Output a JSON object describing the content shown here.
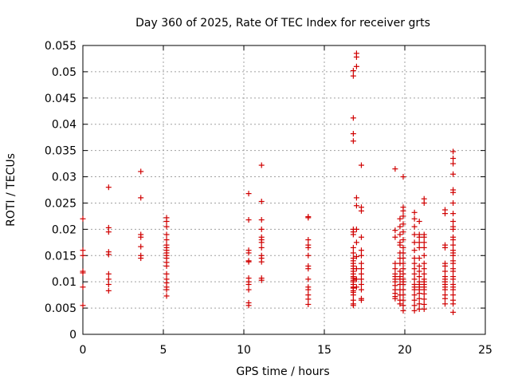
{
  "chart_data": {
    "type": "scatter",
    "title": "Day 360 of 2025, Rate Of TEC Index for receiver grts",
    "xlabel": "GPS time / hours",
    "ylabel": "ROTI / TECUs",
    "xlim": [
      0,
      25
    ],
    "ylim": [
      0,
      0.055
    ],
    "xticks": [
      "0",
      "5",
      "10",
      "15",
      "20",
      "25"
    ],
    "yticks": [
      "0",
      "0.005",
      "0.01",
      "0.015",
      "0.02",
      "0.025",
      "0.03",
      "0.035",
      "0.04",
      "0.045",
      "0.05",
      "0.055"
    ],
    "grid": true,
    "marker": "plus",
    "color": "#d00000",
    "series": [
      {
        "name": "ROTI",
        "x": [
          0.0,
          0.0,
          0.0,
          0.0,
          0.0,
          0.0,
          0.0,
          1.6,
          1.6,
          1.6,
          1.6,
          1.6,
          1.6,
          1.6,
          1.6,
          1.6,
          3.6,
          3.6,
          3.6,
          3.6,
          3.6,
          3.6,
          3.6,
          5.2,
          5.2,
          5.2,
          5.2,
          5.2,
          5.2,
          5.2,
          5.2,
          5.2,
          5.2,
          5.2,
          5.2,
          5.2,
          5.2,
          5.2,
          5.2,
          5.2,
          5.2,
          5.2,
          10.3,
          10.3,
          10.3,
          10.3,
          10.3,
          10.3,
          10.3,
          10.3,
          10.3,
          10.3,
          10.3,
          10.3,
          11.1,
          11.1,
          11.1,
          11.1,
          11.1,
          11.1,
          11.1,
          11.1,
          11.1,
          11.1,
          11.1,
          11.1,
          11.1,
          14.0,
          14.0,
          14.0,
          14.0,
          14.0,
          14.0,
          14.0,
          14.0,
          14.0,
          14.0,
          14.0,
          14.0,
          14.0,
          14.0,
          16.8,
          16.8,
          16.8,
          16.8,
          16.8,
          16.8,
          16.8,
          16.8,
          16.8,
          16.8,
          16.8,
          16.8,
          16.8,
          16.8,
          16.8,
          16.8,
          16.8,
          16.8,
          16.8,
          16.8,
          16.8,
          16.8,
          16.8,
          16.8,
          16.8,
          16.8,
          16.8,
          16.8,
          16.8,
          16.8,
          17.0,
          17.0,
          17.0,
          17.0,
          17.0,
          17.0,
          17.0,
          17.0,
          17.0,
          17.0,
          17.0,
          17.3,
          17.3,
          17.3,
          17.3,
          17.3,
          17.3,
          17.3,
          17.3,
          17.3,
          17.3,
          17.3,
          17.3,
          17.3,
          17.3,
          19.4,
          19.4,
          19.4,
          19.4,
          19.4,
          19.4,
          19.4,
          19.4,
          19.4,
          19.4,
          19.4,
          19.4,
          19.4,
          19.4,
          19.7,
          19.7,
          19.7,
          19.7,
          19.7,
          19.7,
          19.7,
          19.7,
          19.7,
          19.7,
          19.7,
          19.7,
          19.7,
          19.7,
          19.7,
          19.7,
          19.9,
          19.9,
          19.9,
          19.9,
          19.9,
          19.9,
          19.9,
          19.9,
          19.9,
          19.9,
          19.9,
          19.9,
          19.9,
          19.9,
          19.9,
          19.9,
          19.9,
          19.9,
          19.9,
          19.9,
          19.9,
          20.6,
          20.6,
          20.6,
          20.6,
          20.6,
          20.6,
          20.6,
          20.6,
          20.6,
          20.6,
          20.6,
          20.6,
          20.6,
          20.6,
          20.6,
          20.6,
          20.6,
          20.6,
          20.9,
          20.9,
          20.9,
          20.9,
          20.9,
          20.9,
          20.9,
          20.9,
          20.9,
          20.9,
          20.9,
          20.9,
          20.9,
          20.9,
          20.9,
          20.9,
          20.9,
          21.2,
          21.2,
          21.2,
          21.2,
          21.2,
          21.2,
          21.2,
          21.2,
          21.2,
          21.2,
          21.2,
          21.2,
          21.2,
          21.2,
          21.2,
          21.2,
          21.2,
          21.2,
          21.2,
          22.5,
          22.5,
          22.5,
          22.5,
          22.5,
          22.5,
          22.5,
          22.5,
          22.5,
          22.5,
          22.5,
          22.5,
          22.5,
          22.5,
          22.5,
          22.5,
          23.0,
          23.0,
          23.0,
          23.0,
          23.0,
          23.0,
          23.0,
          23.0,
          23.0,
          23.0,
          23.0,
          23.0,
          23.0,
          23.0,
          23.0,
          23.0,
          23.0,
          23.0,
          23.0,
          23.0,
          23.0,
          23.0,
          23.0,
          23.0,
          23.0,
          23.0,
          23.0,
          23.0,
          23.0,
          23.0
        ],
        "y": [
          0.0055,
          0.009,
          0.0117,
          0.012,
          0.015,
          0.016,
          0.022,
          0.0083,
          0.0095,
          0.0105,
          0.0115,
          0.0152,
          0.0157,
          0.0195,
          0.0203,
          0.028,
          0.0145,
          0.015,
          0.0167,
          0.0185,
          0.019,
          0.026,
          0.031,
          0.0073,
          0.0085,
          0.009,
          0.0098,
          0.0105,
          0.0115,
          0.013,
          0.0137,
          0.0145,
          0.015,
          0.0155,
          0.016,
          0.0165,
          0.017,
          0.018,
          0.019,
          0.0205,
          0.0215,
          0.0222,
          0.0055,
          0.006,
          0.0085,
          0.0095,
          0.01,
          0.0107,
          0.0138,
          0.014,
          0.0155,
          0.016,
          0.0218,
          0.0268,
          0.0103,
          0.0107,
          0.0138,
          0.0145,
          0.015,
          0.0165,
          0.0175,
          0.018,
          0.0185,
          0.02,
          0.0218,
          0.0253,
          0.0322,
          0.0057,
          0.0067,
          0.0075,
          0.0085,
          0.009,
          0.0105,
          0.0125,
          0.013,
          0.015,
          0.0165,
          0.017,
          0.018,
          0.0222,
          0.0224,
          0.0055,
          0.0058,
          0.0065,
          0.0075,
          0.008,
          0.0083,
          0.0088,
          0.009,
          0.0095,
          0.01,
          0.0103,
          0.0107,
          0.011,
          0.0115,
          0.012,
          0.0125,
          0.013,
          0.0135,
          0.014,
          0.0145,
          0.0155,
          0.0165,
          0.019,
          0.0195,
          0.02,
          0.0368,
          0.0382,
          0.0412,
          0.0492,
          0.0502,
          0.0535,
          0.0528,
          0.051,
          0.009,
          0.0105,
          0.0125,
          0.0148,
          0.0175,
          0.02,
          0.0245,
          0.026,
          0.0065,
          0.0068,
          0.0085,
          0.0095,
          0.0105,
          0.0115,
          0.0125,
          0.0135,
          0.015,
          0.016,
          0.0185,
          0.0235,
          0.0242,
          0.0322,
          0.0068,
          0.0072,
          0.0078,
          0.0085,
          0.0093,
          0.01,
          0.0105,
          0.011,
          0.0115,
          0.0125,
          0.0135,
          0.0185,
          0.0198,
          0.0315,
          0.0058,
          0.0065,
          0.0075,
          0.0085,
          0.0095,
          0.0105,
          0.011,
          0.012,
          0.0135,
          0.0145,
          0.0155,
          0.017,
          0.0175,
          0.019,
          0.0205,
          0.022,
          0.0045,
          0.0055,
          0.0065,
          0.0075,
          0.0085,
          0.0095,
          0.01,
          0.0105,
          0.0115,
          0.0125,
          0.0135,
          0.0145,
          0.0155,
          0.0165,
          0.018,
          0.0195,
          0.021,
          0.0225,
          0.0235,
          0.0242,
          0.03,
          0.0045,
          0.0055,
          0.0065,
          0.0075,
          0.0085,
          0.009,
          0.0095,
          0.0105,
          0.0115,
          0.0125,
          0.0135,
          0.0145,
          0.016,
          0.0175,
          0.019,
          0.0205,
          0.022,
          0.0232,
          0.0048,
          0.0058,
          0.0068,
          0.0078,
          0.0085,
          0.009,
          0.0095,
          0.01,
          0.011,
          0.012,
          0.013,
          0.0145,
          0.0165,
          0.0175,
          0.0185,
          0.019,
          0.0215,
          0.0048,
          0.0057,
          0.0067,
          0.0077,
          0.0085,
          0.009,
          0.0095,
          0.01,
          0.0105,
          0.0115,
          0.0125,
          0.0135,
          0.015,
          0.0165,
          0.0175,
          0.0185,
          0.019,
          0.025,
          0.0258,
          0.0058,
          0.0068,
          0.0075,
          0.0085,
          0.009,
          0.0095,
          0.01,
          0.0105,
          0.011,
          0.012,
          0.013,
          0.0135,
          0.0165,
          0.017,
          0.023,
          0.0237,
          0.0042,
          0.0058,
          0.0065,
          0.0075,
          0.0085,
          0.009,
          0.0095,
          0.0105,
          0.011,
          0.012,
          0.0125,
          0.0135,
          0.014,
          0.015,
          0.0155,
          0.016,
          0.017,
          0.018,
          0.0185,
          0.02,
          0.0205,
          0.0215,
          0.023,
          0.025,
          0.027,
          0.0275,
          0.0305,
          0.0325,
          0.0335,
          0.0348
        ]
      }
    ]
  }
}
